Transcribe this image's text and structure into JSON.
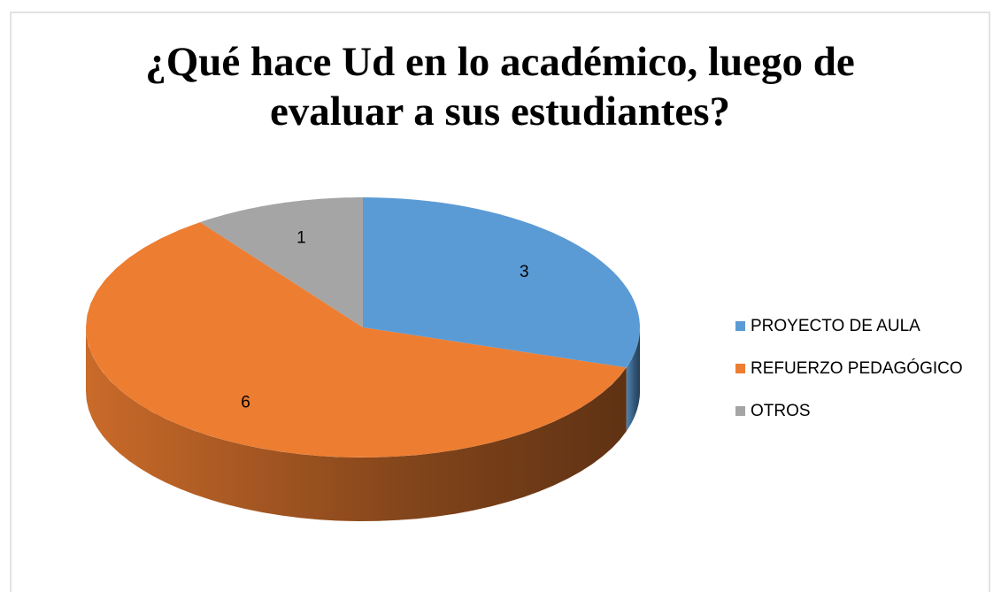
{
  "chart_data": {
    "type": "pie",
    "title": "¿Qué hace Ud en lo académico, luego de evaluar a sus estudiantes?",
    "categories": [
      "PROYECTO DE AULA",
      "REFUERZO PEDAGÓGICO",
      "OTROS"
    ],
    "values": [
      3,
      6,
      1
    ],
    "colors": [
      "#5b9bd5",
      "#ed7d31",
      "#a5a5a5"
    ],
    "legend": "right"
  }
}
